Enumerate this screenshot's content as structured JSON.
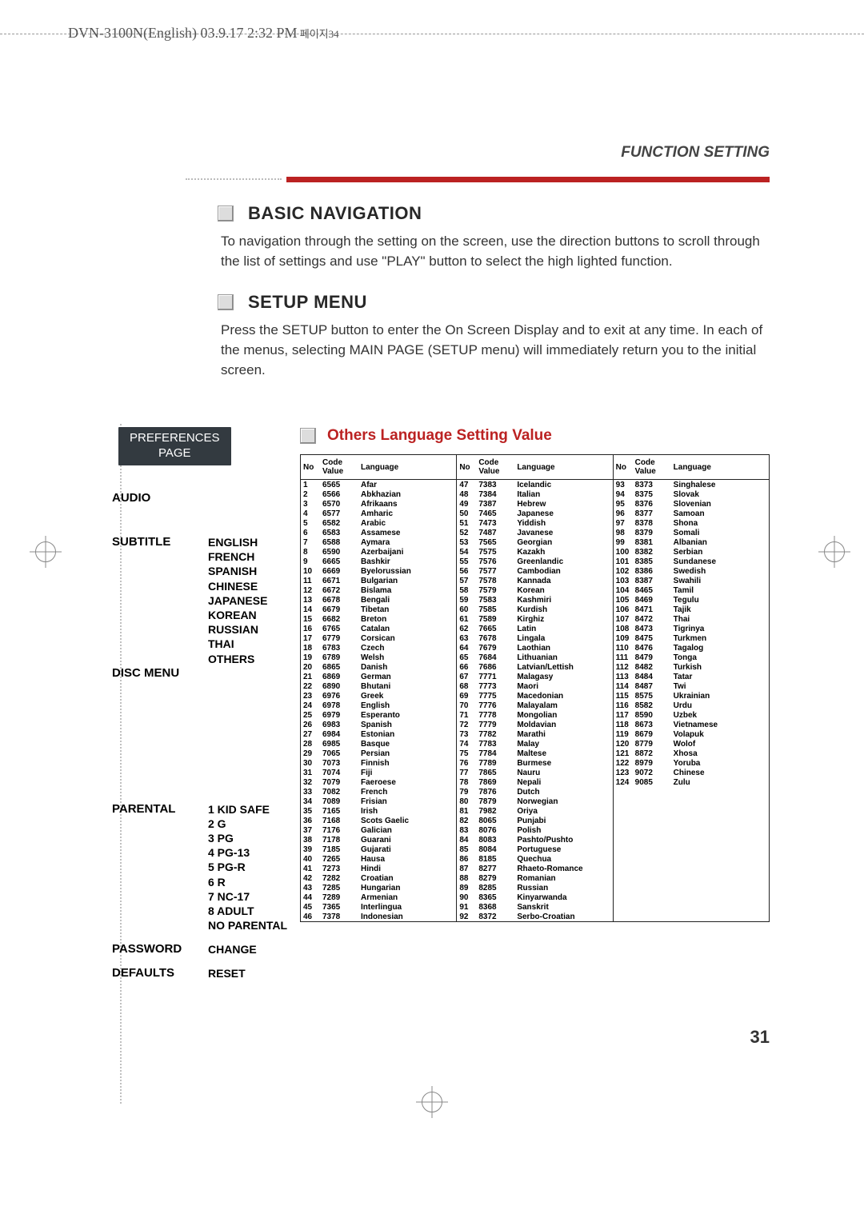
{
  "header": {
    "docline": "DVN-3100N(English)  03.9.17 2:32 PM",
    "docline_tail": " 페이지34"
  },
  "functionSetting": "FUNCTION SETTING",
  "sections": {
    "basic": {
      "title": "BASIC NAVIGATION",
      "body": "To navigation through the setting on the screen, use the direction buttons to scroll through the list of settings and use \"PLAY\" button to select the high lighted function."
    },
    "setup": {
      "title": "SETUP MENU",
      "body": "Press the SETUP button to enter the On Screen Display and to exit at any time. In each of the menus, selecting MAIN PAGE (SETUP menu) will immediately return you to the initial screen."
    },
    "others_title": "Others Language Setting Value"
  },
  "preferencesBox": {
    "line1": "PREFERENCES",
    "line2": "PAGE"
  },
  "menu": [
    {
      "label": "AUDIO",
      "subs": []
    },
    {
      "label": "SUBTITLE",
      "subs": [
        "ENGLISH",
        "FRENCH",
        "SPANISH",
        "CHINESE",
        "JAPANESE",
        "KOREAN",
        "RUSSIAN",
        "THAI",
        "OTHERS"
      ]
    },
    {
      "label": "DISC MENU",
      "subs": []
    },
    {
      "label": "PARENTAL",
      "subs": [
        "1 KID SAFE",
        "2 G",
        "3 PG",
        "4 PG-13",
        "5 PG-R",
        "6 R",
        "7 NC-17",
        "8 ADULT",
        "NO PARENTAL"
      ]
    },
    {
      "label": "PASSWORD",
      "subs": [
        "CHANGE"
      ]
    },
    {
      "label": "DEFAULTS",
      "subs": [
        "RESET"
      ]
    }
  ],
  "tableHeaders": [
    "No",
    "Code Value",
    "Language"
  ],
  "languages": [
    [
      1,
      "6565",
      "Afar"
    ],
    [
      2,
      "6566",
      "Abkhazian"
    ],
    [
      3,
      "6570",
      "Afrikaans"
    ],
    [
      4,
      "6577",
      "Amharic"
    ],
    [
      5,
      "6582",
      "Arabic"
    ],
    [
      6,
      "6583",
      "Assamese"
    ],
    [
      7,
      "6588",
      "Aymara"
    ],
    [
      8,
      "6590",
      "Azerbaijani"
    ],
    [
      9,
      "6665",
      "Bashkir"
    ],
    [
      10,
      "6669",
      "Byelorussian"
    ],
    [
      11,
      "6671",
      "Bulgarian"
    ],
    [
      12,
      "6672",
      "Bislama"
    ],
    [
      13,
      "6678",
      "Bengali"
    ],
    [
      14,
      "6679",
      "Tibetan"
    ],
    [
      15,
      "6682",
      "Breton"
    ],
    [
      16,
      "6765",
      "Catalan"
    ],
    [
      17,
      "6779",
      "Corsican"
    ],
    [
      18,
      "6783",
      "Czech"
    ],
    [
      19,
      "6789",
      "Welsh"
    ],
    [
      20,
      "6865",
      "Danish"
    ],
    [
      21,
      "6869",
      "German"
    ],
    [
      22,
      "6890",
      "Bhutani"
    ],
    [
      23,
      "6976",
      "Greek"
    ],
    [
      24,
      "6978",
      "English"
    ],
    [
      25,
      "6979",
      "Esperanto"
    ],
    [
      26,
      "6983",
      "Spanish"
    ],
    [
      27,
      "6984",
      "Estonian"
    ],
    [
      28,
      "6985",
      "Basque"
    ],
    [
      29,
      "7065",
      "Persian"
    ],
    [
      30,
      "7073",
      "Finnish"
    ],
    [
      31,
      "7074",
      "Fiji"
    ],
    [
      32,
      "7079",
      "Faeroese"
    ],
    [
      33,
      "7082",
      "French"
    ],
    [
      34,
      "7089",
      "Frisian"
    ],
    [
      35,
      "7165",
      "Irish"
    ],
    [
      36,
      "7168",
      "Scots Gaelic"
    ],
    [
      37,
      "7176",
      "Galician"
    ],
    [
      38,
      "7178",
      "Guarani"
    ],
    [
      39,
      "7185",
      "Gujarati"
    ],
    [
      40,
      "7265",
      "Hausa"
    ],
    [
      41,
      "7273",
      "Hindi"
    ],
    [
      42,
      "7282",
      "Croatian"
    ],
    [
      43,
      "7285",
      "Hungarian"
    ],
    [
      44,
      "7289",
      "Armenian"
    ],
    [
      45,
      "7365",
      "Interlingua"
    ],
    [
      46,
      "7378",
      "Indonesian"
    ],
    [
      47,
      "7383",
      "Icelandic"
    ],
    [
      48,
      "7384",
      "Italian"
    ],
    [
      49,
      "7387",
      "Hebrew"
    ],
    [
      50,
      "7465",
      "Japanese"
    ],
    [
      51,
      "7473",
      "Yiddish"
    ],
    [
      52,
      "7487",
      "Javanese"
    ],
    [
      53,
      "7565",
      "Georgian"
    ],
    [
      54,
      "7575",
      "Kazakh"
    ],
    [
      55,
      "7576",
      "Greenlandic"
    ],
    [
      56,
      "7577",
      "Cambodian"
    ],
    [
      57,
      "7578",
      "Kannada"
    ],
    [
      58,
      "7579",
      "Korean"
    ],
    [
      59,
      "7583",
      "Kashmiri"
    ],
    [
      60,
      "7585",
      "Kurdish"
    ],
    [
      61,
      "7589",
      "Kirghiz"
    ],
    [
      62,
      "7665",
      "Latin"
    ],
    [
      63,
      "7678",
      "Lingala"
    ],
    [
      64,
      "7679",
      "Laothian"
    ],
    [
      65,
      "7684",
      "Lithuanian"
    ],
    [
      66,
      "7686",
      "Latvian/Lettish"
    ],
    [
      67,
      "7771",
      "Malagasy"
    ],
    [
      68,
      "7773",
      "Maori"
    ],
    [
      69,
      "7775",
      "Macedonian"
    ],
    [
      70,
      "7776",
      "Malayalam"
    ],
    [
      71,
      "7778",
      "Mongolian"
    ],
    [
      72,
      "7779",
      "Moldavian"
    ],
    [
      73,
      "7782",
      "Marathi"
    ],
    [
      74,
      "7783",
      "Malay"
    ],
    [
      75,
      "7784",
      "Maltese"
    ],
    [
      76,
      "7789",
      "Burmese"
    ],
    [
      77,
      "7865",
      "Nauru"
    ],
    [
      78,
      "7869",
      "Nepali"
    ],
    [
      79,
      "7876",
      "Dutch"
    ],
    [
      80,
      "7879",
      "Norwegian"
    ],
    [
      81,
      "7982",
      "Oriya"
    ],
    [
      82,
      "8065",
      "Punjabi"
    ],
    [
      83,
      "8076",
      "Polish"
    ],
    [
      84,
      "8083",
      "Pashto/Pushto"
    ],
    [
      85,
      "8084",
      "Portuguese"
    ],
    [
      86,
      "8185",
      "Quechua"
    ],
    [
      87,
      "8277",
      "Rhaeto-Romance"
    ],
    [
      88,
      "8279",
      "Romanian"
    ],
    [
      89,
      "8285",
      "Russian"
    ],
    [
      90,
      "8365",
      "Kinyarwanda"
    ],
    [
      91,
      "8368",
      "Sanskrit"
    ],
    [
      92,
      "8372",
      "Serbo-Croatian"
    ],
    [
      93,
      "8373",
      "Singhalese"
    ],
    [
      94,
      "8375",
      "Slovak"
    ],
    [
      95,
      "8376",
      "Slovenian"
    ],
    [
      96,
      "8377",
      "Samoan"
    ],
    [
      97,
      "8378",
      "Shona"
    ],
    [
      98,
      "8379",
      "Somali"
    ],
    [
      99,
      "8381",
      "Albanian"
    ],
    [
      100,
      "8382",
      "Serbian"
    ],
    [
      101,
      "8385",
      "Sundanese"
    ],
    [
      102,
      "8386",
      "Swedish"
    ],
    [
      103,
      "8387",
      "Swahili"
    ],
    [
      104,
      "8465",
      "Tamil"
    ],
    [
      105,
      "8469",
      "Tegulu"
    ],
    [
      106,
      "8471",
      "Tajik"
    ],
    [
      107,
      "8472",
      "Thai"
    ],
    [
      108,
      "8473",
      "Tigrinya"
    ],
    [
      109,
      "8475",
      "Turkmen"
    ],
    [
      110,
      "8476",
      "Tagalog"
    ],
    [
      111,
      "8479",
      "Tonga"
    ],
    [
      112,
      "8482",
      "Turkish"
    ],
    [
      113,
      "8484",
      "Tatar"
    ],
    [
      114,
      "8487",
      "Twi"
    ],
    [
      115,
      "8575",
      "Ukrainian"
    ],
    [
      116,
      "8582",
      "Urdu"
    ],
    [
      117,
      "8590",
      "Uzbek"
    ],
    [
      118,
      "8673",
      "Vietnamese"
    ],
    [
      119,
      "8679",
      "Volapuk"
    ],
    [
      120,
      "8779",
      "Wolof"
    ],
    [
      121,
      "8872",
      "Xhosa"
    ],
    [
      122,
      "8979",
      "Yoruba"
    ],
    [
      123,
      "9072",
      "Chinese"
    ],
    [
      124,
      "9085",
      "Zulu"
    ]
  ],
  "splitIndices": [
    0,
    46,
    92,
    124
  ],
  "pageNumber": "31",
  "colors": {
    "red": "#bb2222",
    "darkbox": "#333a40"
  }
}
